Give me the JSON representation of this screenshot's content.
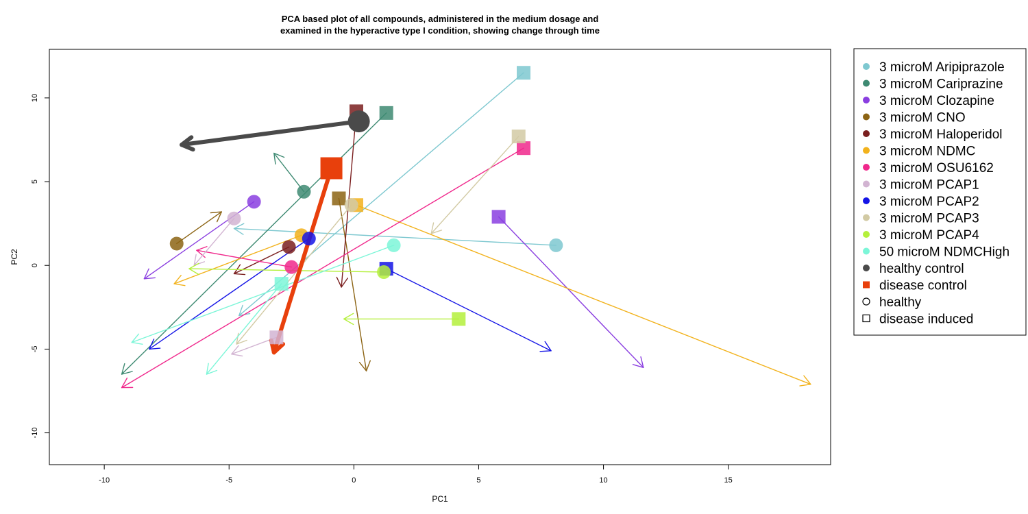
{
  "chart_data": {
    "type": "scatter",
    "title_lines": [
      "PCA based plot of all compounds, administered in the medium dosage and",
      "examined in the hyperactive type I condition, showing change through time"
    ],
    "xlabel": "PC1",
    "ylabel": "PC2",
    "xlim": [
      -12.2,
      19.1
    ],
    "ylim": [
      -11.9,
      12.9
    ],
    "xticks": [
      -10,
      -5,
      0,
      5,
      10,
      15
    ],
    "yticks": [
      -10,
      -5,
      0,
      5,
      10
    ],
    "legend_position": "right",
    "series": [
      {
        "name": "3 microM Aripiprazole",
        "color": "#7EC8D0",
        "healthy": [
          8.1,
          1.2
        ],
        "healthy_arrow_to": [
          -4.8,
          2.2
        ],
        "disease": [
          6.8,
          11.5
        ],
        "disease_arrow_to": [
          -4.6,
          -3.0
        ]
      },
      {
        "name": "3 microM Cariprazine",
        "color": "#3E8A72",
        "healthy": [
          -2.0,
          4.4
        ],
        "healthy_arrow_to": [
          -3.2,
          6.7
        ],
        "disease": [
          1.3,
          9.1
        ],
        "disease_arrow_to": [
          -9.3,
          -6.5
        ]
      },
      {
        "name": "3 microM Clozapine",
        "color": "#8A3EE0",
        "healthy": [
          -4.0,
          3.8
        ],
        "healthy_arrow_to": [
          -8.4,
          -0.8
        ],
        "disease": [
          5.8,
          2.9
        ],
        "disease_arrow_to": [
          11.6,
          -6.1
        ]
      },
      {
        "name": "3 microM CNO",
        "color": "#8C6414",
        "healthy": [
          -7.1,
          1.3
        ],
        "healthy_arrow_to": [
          -5.3,
          3.2
        ],
        "disease": [
          -0.6,
          4.0
        ],
        "disease_arrow_to": [
          0.5,
          -6.3
        ]
      },
      {
        "name": "3 microM Haloperidol",
        "color": "#7A1E1E",
        "healthy": [
          -2.6,
          1.1
        ],
        "healthy_arrow_to": [
          -4.8,
          -0.5
        ],
        "disease": [
          0.1,
          9.2
        ],
        "disease_arrow_to": [
          -0.5,
          -1.3
        ]
      },
      {
        "name": "3 microM NDMC",
        "color": "#F2B21C",
        "healthy": [
          -2.1,
          1.8
        ],
        "healthy_arrow_to": [
          -7.2,
          -1.1
        ],
        "disease": [
          0.1,
          3.6
        ],
        "disease_arrow_to": [
          18.3,
          -7.1
        ]
      },
      {
        "name": "3 microM OSU6162",
        "color": "#F0288C",
        "healthy": [
          -2.5,
          -0.1
        ],
        "healthy_arrow_to": [
          -6.3,
          0.9
        ],
        "disease": [
          6.8,
          7.0
        ],
        "disease_arrow_to": [
          -9.3,
          -7.3
        ]
      },
      {
        "name": "3 microM PCAP1",
        "color": "#D2B4D2",
        "healthy": [
          -4.8,
          2.8
        ],
        "healthy_arrow_to": [
          -6.4,
          0.0
        ],
        "disease": [
          -3.1,
          -4.3
        ],
        "disease_arrow_to": [
          -4.9,
          -5.3
        ]
      },
      {
        "name": "3 microM PCAP2",
        "color": "#1414E6",
        "healthy": [
          -1.8,
          1.6
        ],
        "healthy_arrow_to": [
          -8.2,
          -5.0
        ],
        "disease": [
          1.3,
          -0.2
        ],
        "disease_arrow_to": [
          7.9,
          -5.1
        ]
      },
      {
        "name": "3 microM PCAP3",
        "color": "#D2CAA4",
        "healthy": [
          -0.1,
          3.6
        ],
        "healthy_arrow_to": [
          -4.7,
          -4.7
        ],
        "disease": [
          6.6,
          7.7
        ],
        "disease_arrow_to": [
          3.1,
          1.9
        ]
      },
      {
        "name": "3 microM PCAP4",
        "color": "#B4F03C",
        "healthy": [
          1.2,
          -0.4
        ],
        "healthy_arrow_to": [
          -6.6,
          -0.2
        ],
        "disease": [
          4.2,
          -3.2
        ],
        "disease_arrow_to": [
          -0.4,
          -3.2
        ]
      },
      {
        "name": "50 microM NDMCHigh",
        "color": "#7CF6D8",
        "healthy": [
          1.6,
          1.2
        ],
        "healthy_arrow_to": [
          -8.9,
          -4.6
        ],
        "disease": [
          -2.9,
          -1.1
        ],
        "disease_arrow_to": [
          -5.9,
          -6.5
        ]
      },
      {
        "name": "healthy control",
        "color": "#4A4A4A",
        "healthy": [
          0.2,
          8.6
        ],
        "healthy_arrow_to": [
          -6.9,
          7.2
        ]
      },
      {
        "name": "disease control",
        "color": "#E8400C",
        "disease": [
          -0.9,
          5.8
        ],
        "disease_arrow_to": [
          -3.2,
          -5.2
        ]
      }
    ],
    "legend": [
      {
        "label": "3 microM Aripiprazole",
        "color": "#7EC8D0",
        "marker": "dot"
      },
      {
        "label": "3 microM Cariprazine",
        "color": "#3E8A72",
        "marker": "dot"
      },
      {
        "label": "3 microM Clozapine",
        "color": "#8A3EE0",
        "marker": "dot"
      },
      {
        "label": "3 microM CNO",
        "color": "#8C6414",
        "marker": "dot"
      },
      {
        "label": "3 microM Haloperidol",
        "color": "#7A1E1E",
        "marker": "dot"
      },
      {
        "label": "3 microM NDMC",
        "color": "#F2B21C",
        "marker": "dot"
      },
      {
        "label": "3 microM OSU6162",
        "color": "#F0288C",
        "marker": "dot"
      },
      {
        "label": "3 microM PCAP1",
        "color": "#D2B4D2",
        "marker": "dot"
      },
      {
        "label": "3 microM PCAP2",
        "color": "#1414E6",
        "marker": "dot"
      },
      {
        "label": "3 microM PCAP3",
        "color": "#D2CAA4",
        "marker": "dot"
      },
      {
        "label": "3 microM PCAP4",
        "color": "#B4F03C",
        "marker": "dot"
      },
      {
        "label": "50 microM NDMCHigh",
        "color": "#7CF6D8",
        "marker": "dot"
      },
      {
        "label": "healthy control",
        "color": "#4A4A4A",
        "marker": "dot"
      },
      {
        "label": "disease control",
        "color": "#E8400C",
        "marker": "square"
      },
      {
        "label": "healthy",
        "color": "#000000",
        "marker": "open-circle"
      },
      {
        "label": "disease induced",
        "color": "#000000",
        "marker": "open-square"
      }
    ]
  }
}
